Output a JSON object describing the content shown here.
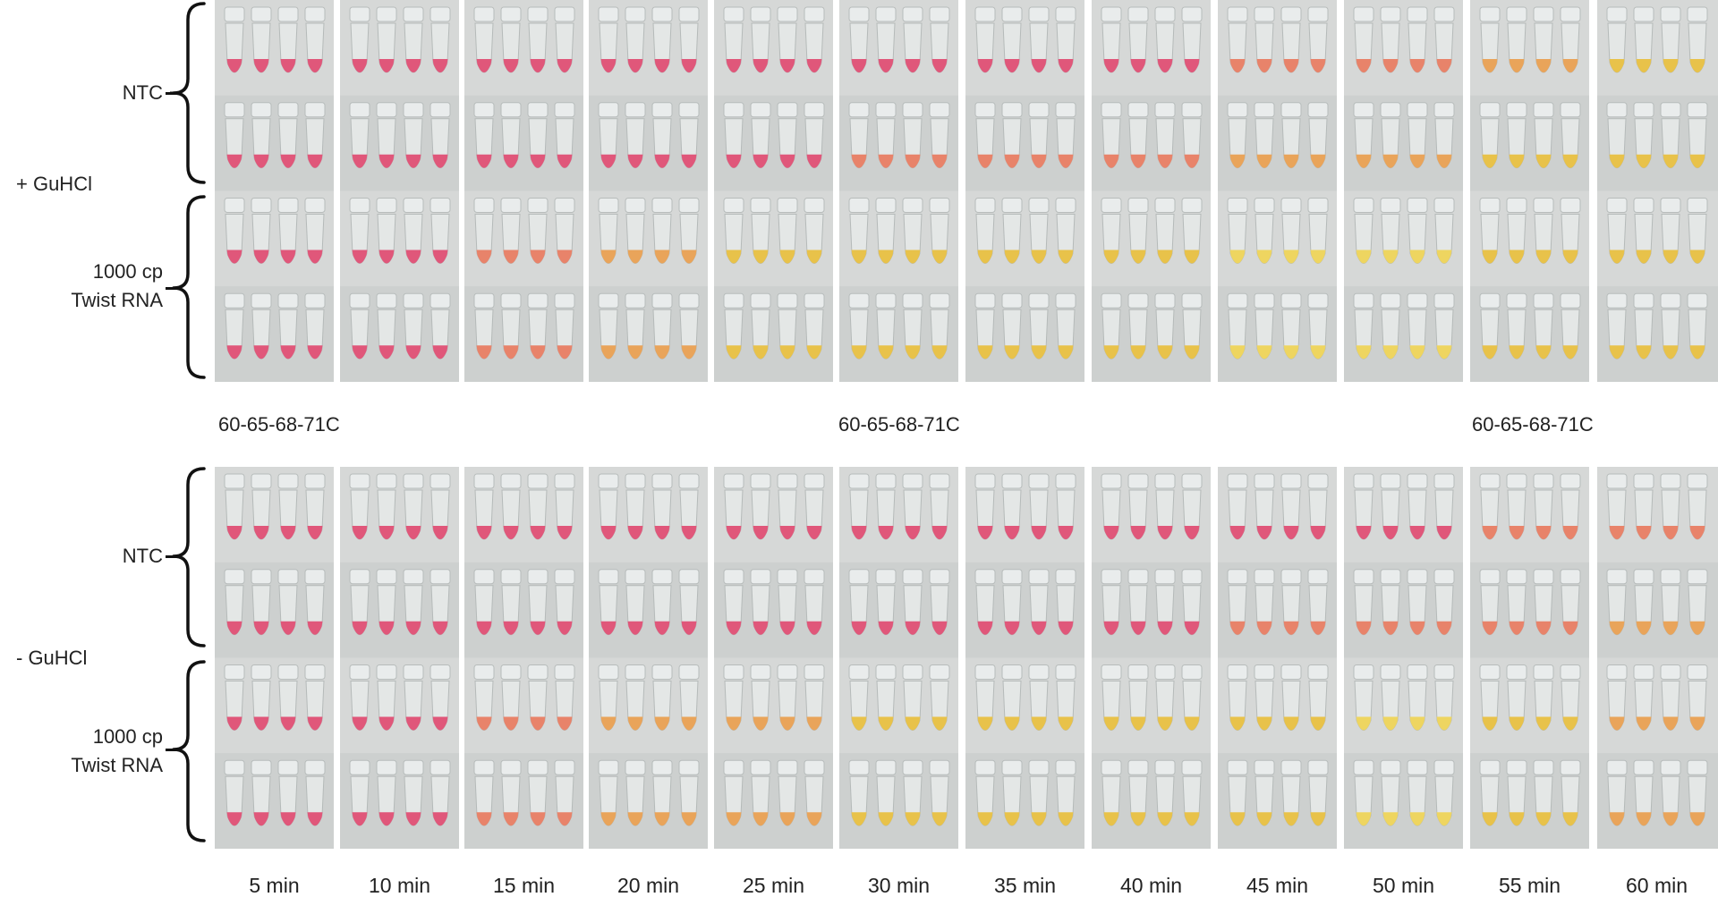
{
  "sections": [
    {
      "condition_label": "+ GuHCl",
      "groups": [
        {
          "label_lines": [
            "NTC"
          ]
        },
        {
          "label_lines": [
            "1000 cp",
            "Twist RNA"
          ]
        }
      ]
    },
    {
      "condition_label": "- GuHCl",
      "groups": [
        {
          "label_lines": [
            "NTC"
          ]
        },
        {
          "label_lines": [
            "1000 cp",
            "Twist RNA"
          ]
        }
      ]
    }
  ],
  "temperature_labels": [
    "60-65-68-71C",
    "60-65-68-71C",
    "60-65-68-71C"
  ],
  "time_labels": [
    "5 min",
    "10 min",
    "15 min",
    "20 min",
    "25 min",
    "30 min",
    "35 min",
    "40 min",
    "45 min",
    "50 min",
    "55 min",
    "60 min"
  ],
  "tube_colors": {
    "pink": "#e0577a",
    "salmon": "#e8836a",
    "orange": "#e9a45a",
    "yellow": "#e8c24a",
    "pale_yellow": "#eed560"
  }
}
